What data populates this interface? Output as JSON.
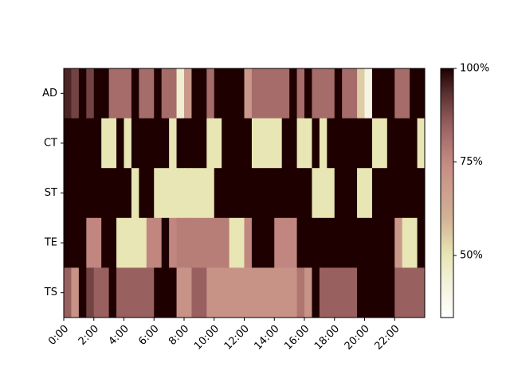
{
  "chart_data": {
    "type": "heatmap",
    "rows": [
      "AD",
      "CT",
      "ST",
      "TE",
      "TS"
    ],
    "x": [
      0,
      0.5,
      1,
      1.5,
      2,
      2.5,
      3,
      3.5,
      4,
      4.5,
      5,
      5.5,
      6,
      6.5,
      7,
      7.5,
      8,
      8.5,
      9,
      9.5,
      10,
      10.5,
      11,
      11.5,
      12,
      12.5,
      13,
      13.5,
      14,
      14.5,
      15,
      15.5,
      16,
      16.5,
      17,
      17.5,
      18,
      18.5,
      19,
      19.5,
      20,
      20.5,
      21,
      21.5,
      22,
      22.5,
      23,
      23.5
    ],
    "cell_width": 0.5,
    "z": [
      [
        95,
        90,
        100,
        90,
        100,
        100,
        82,
        82,
        82,
        100,
        82,
        82,
        100,
        82,
        82,
        45,
        70,
        100,
        100,
        82,
        100,
        100,
        100,
        100,
        70,
        82,
        82,
        82,
        82,
        82,
        100,
        82,
        100,
        82,
        82,
        82,
        100,
        82,
        82,
        55,
        40,
        100,
        100,
        100,
        82,
        82,
        100,
        100
      ],
      [
        100,
        100,
        100,
        100,
        100,
        50,
        50,
        100,
        50,
        100,
        100,
        100,
        100,
        100,
        50,
        100,
        100,
        100,
        100,
        50,
        50,
        100,
        100,
        100,
        100,
        50,
        50,
        50,
        50,
        100,
        100,
        50,
        50,
        100,
        50,
        100,
        100,
        100,
        100,
        100,
        100,
        50,
        50,
        100,
        100,
        100,
        100,
        50
      ],
      [
        100,
        100,
        100,
        100,
        100,
        100,
        100,
        100,
        100,
        50,
        100,
        100,
        50,
        50,
        50,
        50,
        50,
        50,
        50,
        50,
        100,
        100,
        100,
        100,
        100,
        100,
        100,
        100,
        100,
        100,
        100,
        100,
        100,
        50,
        50,
        50,
        100,
        100,
        100,
        50,
        50,
        100,
        100,
        100,
        100,
        100,
        100,
        100
      ],
      [
        100,
        100,
        100,
        76,
        76,
        100,
        100,
        50,
        50,
        50,
        50,
        76,
        76,
        100,
        76,
        78,
        78,
        78,
        78,
        78,
        78,
        78,
        50,
        50,
        76,
        100,
        100,
        100,
        76,
        76,
        76,
        100,
        100,
        100,
        100,
        100,
        100,
        100,
        100,
        100,
        100,
        100,
        100,
        100,
        70,
        50,
        50,
        100
      ],
      [
        85,
        72,
        100,
        90,
        85,
        85,
        100,
        85,
        85,
        85,
        85,
        85,
        100,
        100,
        100,
        72,
        72,
        85,
        85,
        72,
        72,
        72,
        72,
        72,
        72,
        72,
        72,
        72,
        72,
        72,
        72,
        80,
        72,
        100,
        85,
        85,
        85,
        85,
        85,
        100,
        100,
        100,
        100,
        100,
        85,
        85,
        85,
        85
      ]
    ],
    "xlim": [
      0,
      24
    ],
    "xticks": [
      {
        "value": 0,
        "label": "0:00"
      },
      {
        "value": 2,
        "label": "2:00"
      },
      {
        "value": 4,
        "label": "4:00"
      },
      {
        "value": 6,
        "label": "6:00"
      },
      {
        "value": 8,
        "label": "8:00"
      },
      {
        "value": 10,
        "label": "10:00"
      },
      {
        "value": 12,
        "label": "12:00"
      },
      {
        "value": 14,
        "label": "14:00"
      },
      {
        "value": 16,
        "label": "16:00"
      },
      {
        "value": 18,
        "label": "18:00"
      },
      {
        "value": 20,
        "label": "20:00"
      },
      {
        "value": 22,
        "label": "22:00"
      }
    ],
    "colormap": "pink_r",
    "zlim": [
      33.4,
      100
    ],
    "zticks": [
      {
        "value": 50,
        "label": "50%"
      },
      {
        "value": 75,
        "label": "75%"
      },
      {
        "value": 100,
        "label": "100%"
      }
    ]
  }
}
